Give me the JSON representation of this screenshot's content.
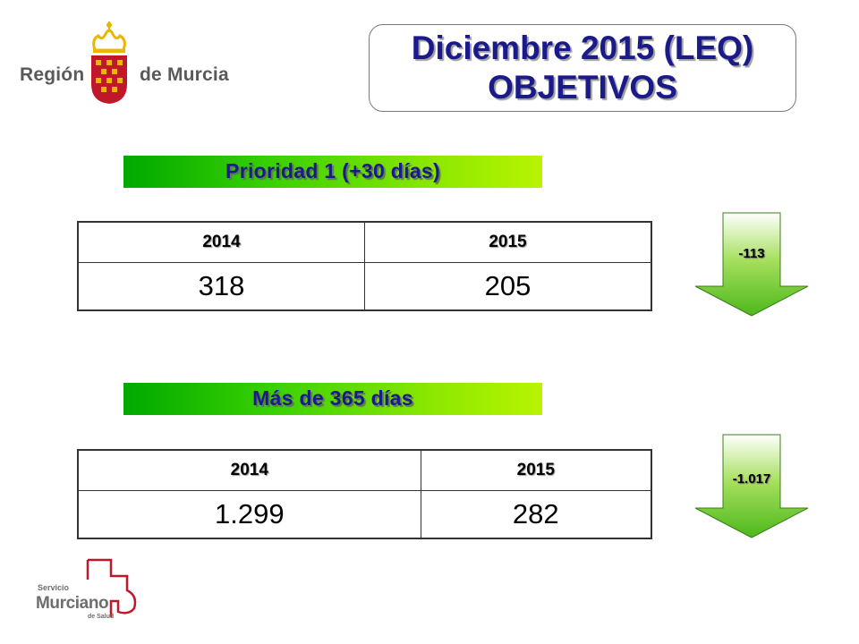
{
  "logo_region": {
    "word_left": "Región",
    "word_right": "de Murcia"
  },
  "title": {
    "line1": "Diciembre 2015 (LEQ)",
    "line2": "OBJETIVOS"
  },
  "sections": [
    {
      "banner": "Prioridad 1 (+30 días)",
      "headers": [
        "2014",
        "2015"
      ],
      "values": [
        "318",
        "205"
      ],
      "difference": "-113"
    },
    {
      "banner": "Más de 365 días",
      "headers": [
        "2014",
        "2015"
      ],
      "values": [
        "1.299",
        "282"
      ],
      "difference": "-1.017"
    }
  ],
  "logo_sms": {
    "line1": "Servicio",
    "line2": "Murciano",
    "line3": "de Salud"
  },
  "colors": {
    "title_text": "#1a1a8a",
    "banner_green": "#38d000",
    "arrow_green": "#7ed321",
    "crest_red": "#c0182a",
    "crest_gold": "#e8b800",
    "sms_red": "#c0182a"
  }
}
